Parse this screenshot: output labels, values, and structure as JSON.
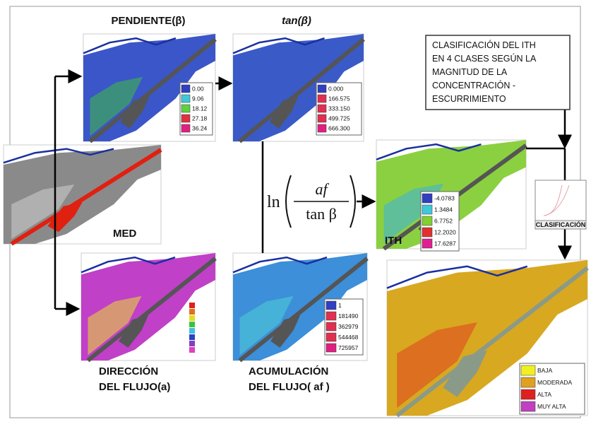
{
  "titles": {
    "pendiente": "PENDIENTE(β)",
    "tan": "tan(β)",
    "med": "MED",
    "ith": "ITH",
    "clasificacion_small": "CLASIFICACIÓN",
    "direccion": [
      "DIRECCIÓN",
      "DEL FLUJO(a)"
    ],
    "acumulacion": [
      "ACUMULACIÓN",
      "DEL FLUJO( af )"
    ]
  },
  "formula": {
    "ln": "ln",
    "numerator": "af",
    "denominator": "tan β"
  },
  "note_box": [
    "CLASIFICACIÓN DEL ITH",
    "EN 4 CLASES SEGÚN LA",
    "MAGNITUD DE LA",
    "CONCENTRACIÓN -",
    "ESCURRIMIENTO"
  ],
  "legends": {
    "pendiente": [
      "0.00",
      "9.06",
      "18.12",
      "27.18",
      "36.24"
    ],
    "tan": [
      "0.000",
      "166.575",
      "333.150",
      "499.725",
      "666.300"
    ],
    "ith": [
      "-4.0783",
      "1.3484",
      "6.7752",
      "12.2020",
      "17.6287"
    ],
    "acumulacion": [
      "1",
      "181490",
      "362979",
      "544468",
      "725957"
    ],
    "clasificacion": [
      "BAJA",
      "MODERADA",
      "ALTA",
      "MUY ALTA"
    ]
  }
}
